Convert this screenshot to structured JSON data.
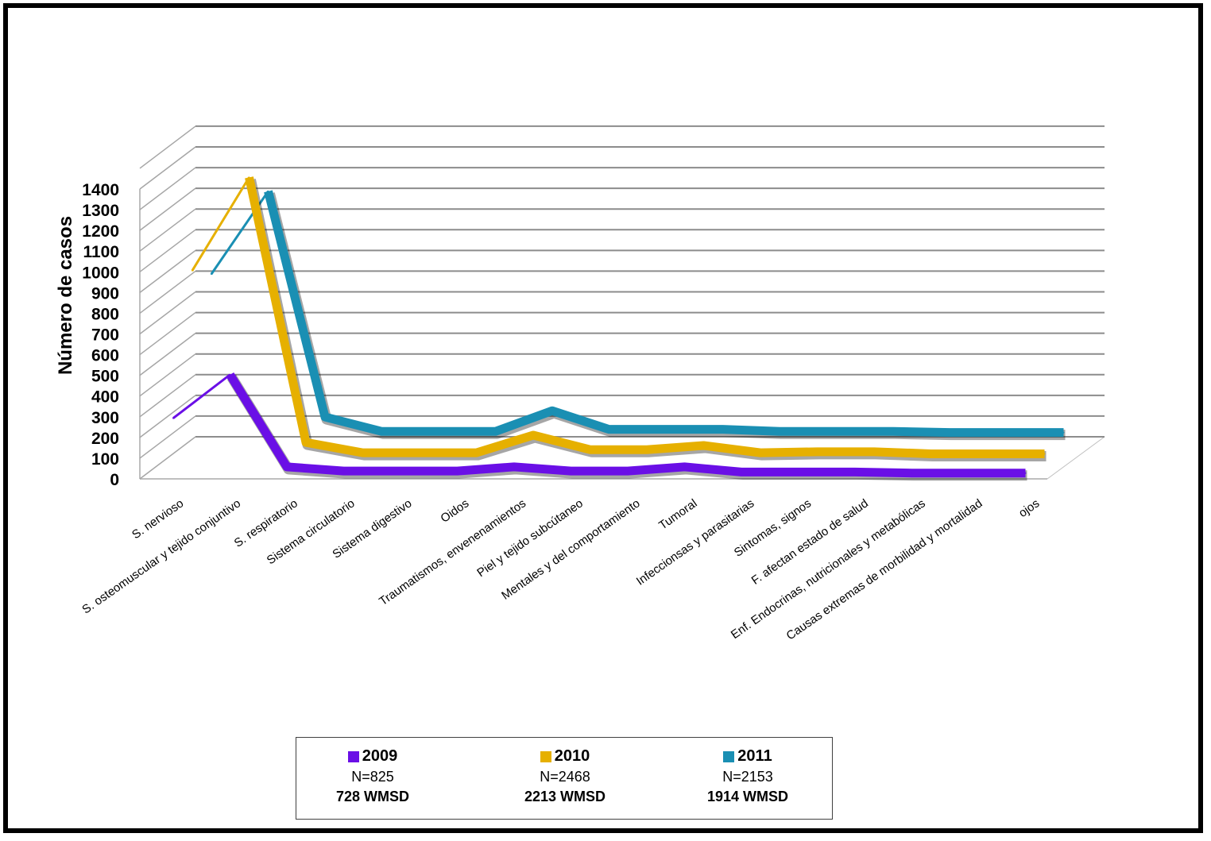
{
  "chart_data": {
    "type": "line",
    "style": "3d",
    "ylabel": "Número   de   casos",
    "ylim": [
      0,
      1400
    ],
    "yticks": [
      0,
      100,
      200,
      300,
      400,
      500,
      600,
      700,
      800,
      900,
      1000,
      1100,
      1200,
      1300,
      1400
    ],
    "grid": true,
    "categories": [
      "S. nervioso",
      "S. osteomuscular y tejido conjuntivo",
      "S. respiratorio",
      "Sistema circulatorio",
      "Sistema digestivo",
      "Oidos",
      "Traumatismos, envenenamientos",
      "Piel y tejido subcútaneo",
      "Mentales y del comportamiento",
      "Tumoral",
      "Infeccionsas y parasitarias",
      "Sintomas, signos",
      "F. afectan estado de salud",
      "Enf. Endocrinas, nutricionales y metabólicas",
      "Causas extremas de morbilidad y mortalidad",
      "ojos"
    ],
    "series": [
      {
        "name": "2009",
        "color": "#6a0fe6",
        "values": [
          270,
          480,
          35,
          15,
          15,
          15,
          35,
          15,
          15,
          35,
          10,
          10,
          10,
          5,
          5,
          5
        ],
        "n_label": "N=825",
        "w_label": "728  WMSD"
      },
      {
        "name": "2010",
        "color": "#e6b000",
        "values": [
          960,
          1410,
          130,
          80,
          80,
          80,
          165,
          95,
          95,
          115,
          80,
          85,
          85,
          75,
          75,
          75
        ],
        "n_label": "N=2468",
        "w_label": "2213  WMSD"
      },
      {
        "name": "2011",
        "color": "#1a8fb3",
        "values": [
          920,
          1320,
          230,
          160,
          160,
          160,
          260,
          170,
          170,
          170,
          160,
          160,
          160,
          155,
          155,
          155
        ],
        "n_label": "N=2153",
        "w_label": "1914  WMSD"
      }
    ],
    "legend_position": "bottom"
  }
}
